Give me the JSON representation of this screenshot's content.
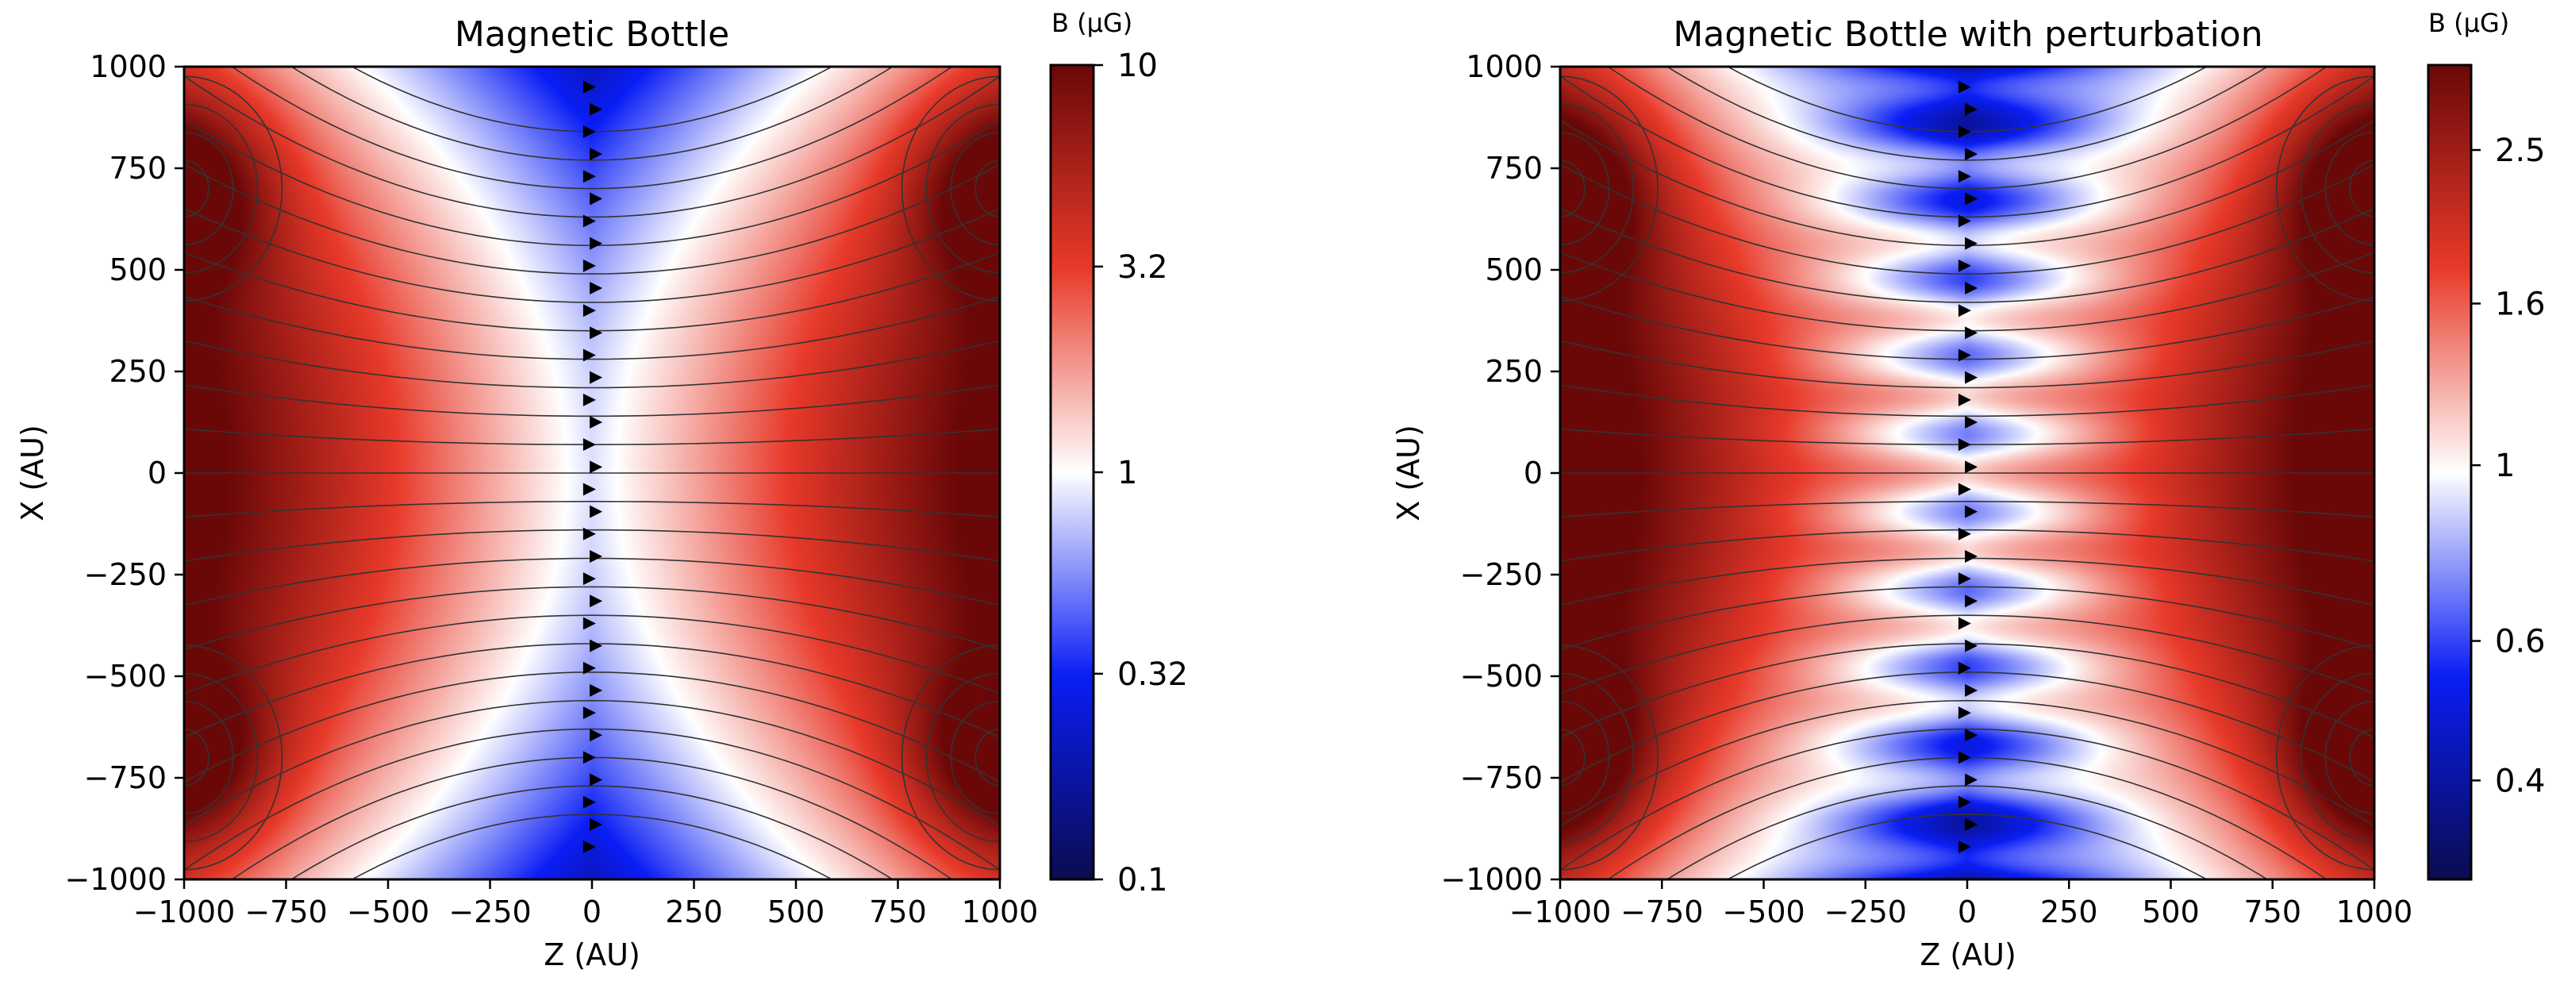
{
  "chart_data": [
    {
      "type": "heatmap",
      "title": "Magnetic Bottle",
      "xlabel": "Z (AU)",
      "ylabel": "X (AU)",
      "xlim": [
        -1000,
        1000
      ],
      "ylim": [
        -1000,
        1000
      ],
      "xticks": [
        -1000,
        -750,
        -500,
        -250,
        0,
        250,
        500,
        750,
        1000
      ],
      "xtick_labels": [
        "−1000",
        "−750",
        "−500",
        "−250",
        "0",
        "250",
        "500",
        "750",
        "1000"
      ],
      "yticks": [
        1000,
        750,
        500,
        250,
        0,
        -250,
        -500,
        -750,
        -1000
      ],
      "ytick_labels": [
        "1000",
        "750",
        "500",
        "250",
        "0",
        "−250",
        "−500",
        "−750",
        "−1000"
      ],
      "colorbar": {
        "label": "B (µG)",
        "scale": "log",
        "range": [
          0.1,
          10
        ],
        "ticks": [
          10,
          3.2,
          1,
          0.32,
          0.1
        ],
        "tick_labels": [
          "10",
          "3.2",
          "1",
          "0.32",
          "0.1"
        ]
      },
      "field_model": {
        "description": "Two-axis bottle field; strong regions at corners, weak along Z=0",
        "coil_positions": [
          [
            -1000,
            700
          ],
          [
            1000,
            700
          ],
          [
            -1000,
            -700
          ],
          [
            1000,
            -700
          ]
        ],
        "perturbation": false
      },
      "overlay": "streamlines"
    },
    {
      "type": "heatmap",
      "title": "Magnetic Bottle with perturbation",
      "xlabel": "Z (AU)",
      "ylabel": "X (AU)",
      "xlim": [
        -1000,
        1000
      ],
      "ylim": [
        -1000,
        1000
      ],
      "xticks": [
        -1000,
        -750,
        -500,
        -250,
        0,
        250,
        500,
        750,
        1000
      ],
      "xtick_labels": [
        "−1000",
        "−750",
        "−500",
        "−250",
        "0",
        "250",
        "500",
        "750",
        "1000"
      ],
      "yticks": [
        1000,
        750,
        500,
        250,
        0,
        -250,
        -500,
        -750,
        -1000
      ],
      "ytick_labels": [
        "1000",
        "750",
        "500",
        "250",
        "0",
        "−250",
        "−500",
        "−750",
        "−1000"
      ],
      "colorbar": {
        "label": "B (µG)",
        "scale": "log",
        "range": [
          0.3,
          3.2
        ],
        "ticks": [
          2.5,
          1.6,
          1,
          0.6,
          0.4
        ],
        "tick_labels": [
          "2.5",
          "1.6",
          "1",
          "0.6",
          "0.4"
        ]
      },
      "field_model": {
        "description": "Bottle field with periodic perturbation along X near Z=0",
        "coil_positions": [
          [
            -1000,
            700
          ],
          [
            1000,
            700
          ],
          [
            -1000,
            -700
          ],
          [
            1000,
            -700
          ]
        ],
        "perturbation": true
      },
      "overlay": "streamlines"
    }
  ],
  "colors": {
    "low": "#0a0a5c",
    "mid_low": "#0a1ef0",
    "neutral": "#ffffff",
    "mid_high": "#e83a2a",
    "high": "#6e0a0a",
    "streamline": "#333333"
  }
}
